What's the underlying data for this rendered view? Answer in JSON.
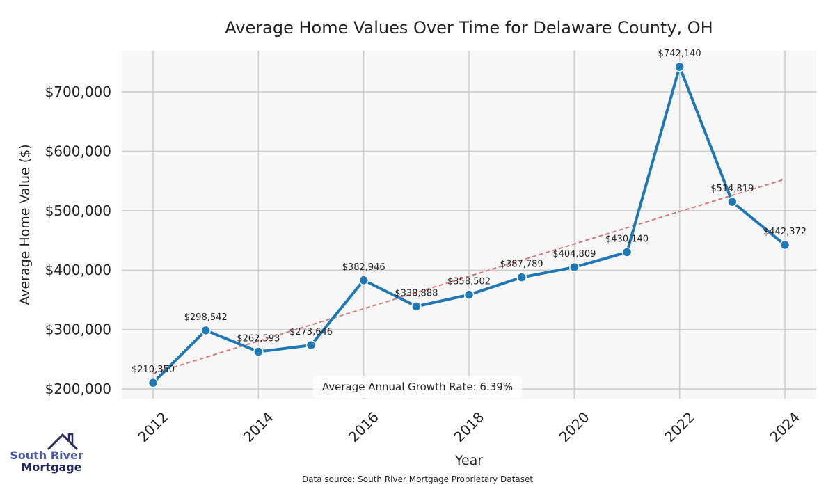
{
  "chart_data": {
    "type": "line",
    "title": "Average Home Values Over Time for Delaware County, OH",
    "xlabel": "Year",
    "ylabel": "Average Home Value ($)",
    "x": [
      2012,
      2013,
      2014,
      2015,
      2016,
      2017,
      2018,
      2019,
      2020,
      2021,
      2022,
      2023,
      2024
    ],
    "values": [
      210350,
      298542,
      262593,
      273646,
      382946,
      338888,
      358502,
      387789,
      404809,
      430140,
      742140,
      514819,
      442372
    ],
    "data_labels": [
      "$210,350",
      "$298,542",
      "$262,593",
      "$273,646",
      "$382,946",
      "$338,888",
      "$358,502",
      "$387,789",
      "$404,809",
      "$430,140",
      "$742,140",
      "$514,819",
      "$442,372"
    ],
    "trend": {
      "start": [
        2012,
        226000
      ],
      "end": [
        2024,
        553000
      ]
    },
    "xticks": [
      "2012",
      "2014",
      "2016",
      "2018",
      "2020",
      "2022",
      "2024"
    ],
    "yticks": [
      200000,
      300000,
      400000,
      500000,
      600000,
      700000
    ],
    "ytick_labels": [
      "$200,000",
      "$300,000",
      "$400,000",
      "$500,000",
      "$600,000",
      "$700,000"
    ],
    "xlim": [
      2011.4,
      2024.6
    ],
    "ylim": [
      183600,
      768000
    ],
    "grid": true,
    "annotation": "Average Annual Growth Rate: 6.39%",
    "source": "Data source: South River Mortgage Proprietary Dataset",
    "colors": {
      "line": "#1f77b4",
      "trend": "#d9777a",
      "bg": "#f7f7f7",
      "grid": "#cccccc"
    }
  },
  "logo": {
    "line1": "South River",
    "line2": "Mortgage"
  }
}
